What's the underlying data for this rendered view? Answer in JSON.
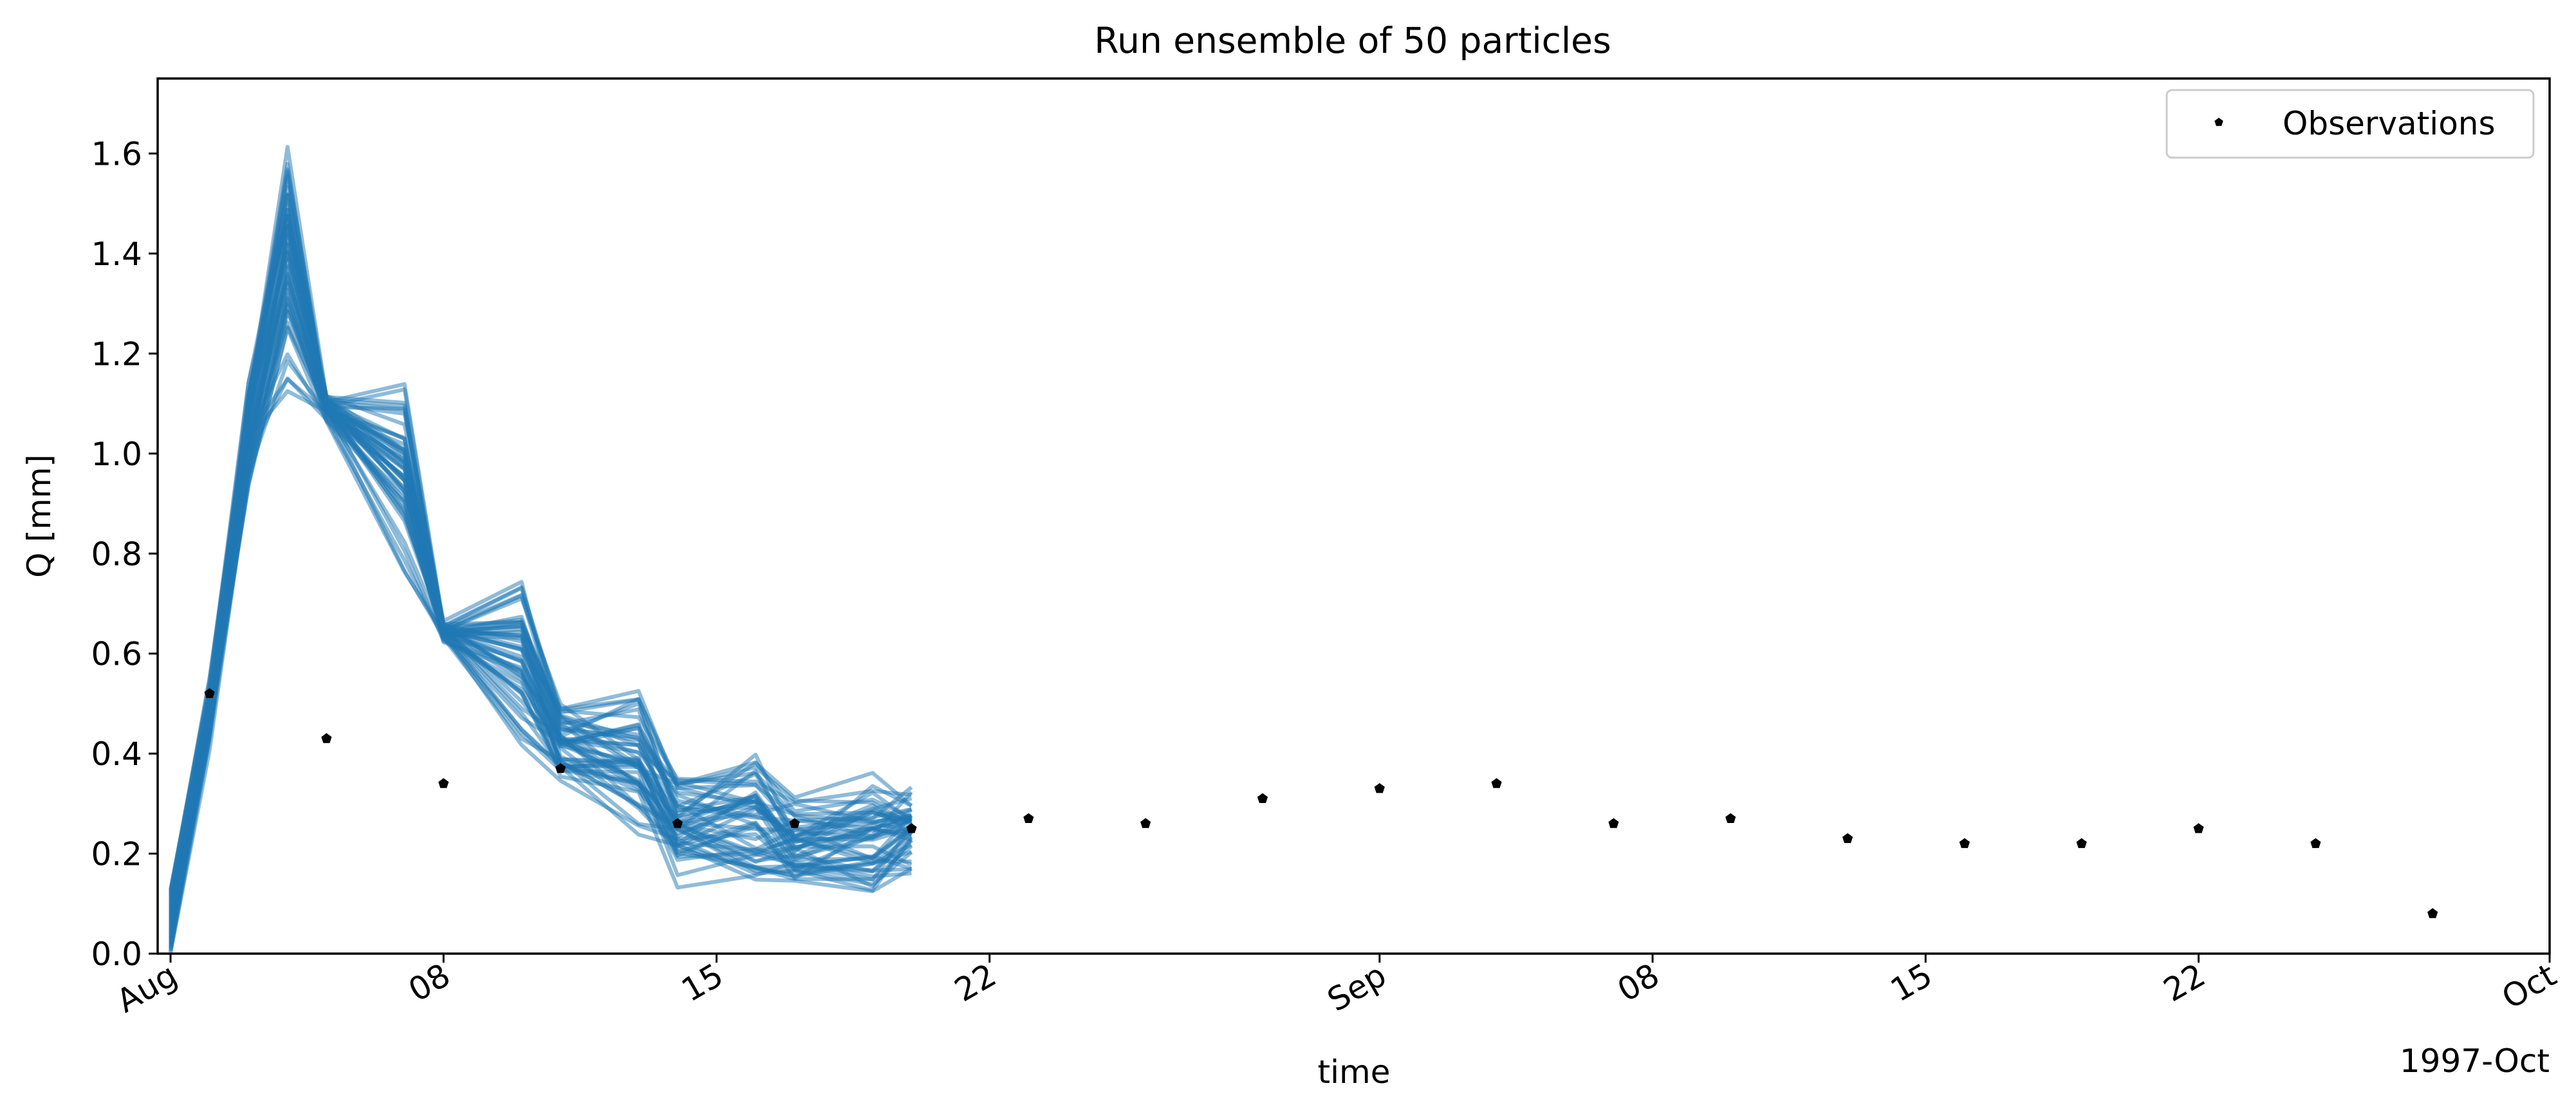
{
  "chart_data": {
    "type": "line",
    "title": "Run ensemble of 50 particles",
    "xlabel": "time",
    "ylabel": "Q [mm]",
    "x_offset_label": "1997-Oct",
    "xlim": [
      "1997-08-01",
      "1997-10-01"
    ],
    "ylim": [
      0,
      1.75
    ],
    "y_ticks": [
      0.0,
      0.2,
      0.4,
      0.6,
      0.8,
      1.0,
      1.2,
      1.4,
      1.6
    ],
    "y_tick_labels": [
      "0.0",
      "0.2",
      "0.4",
      "0.6",
      "0.8",
      "1.0",
      "1.2",
      "1.4",
      "1.6"
    ],
    "x_ticks": [
      "1997-08-01",
      "1997-08-08",
      "1997-08-15",
      "1997-08-22",
      "1997-09-01",
      "1997-09-08",
      "1997-09-15",
      "1997-09-22",
      "1997-10-01"
    ],
    "x_tick_labels": [
      "Aug",
      "08",
      "15",
      "22",
      "Sep",
      "08",
      "15",
      "22",
      "Oct"
    ],
    "legend": {
      "position": "top-right",
      "entries": [
        "Observations"
      ]
    },
    "grid": false,
    "colors": {
      "ensemble": "#1f77b4",
      "observations": "#000000"
    },
    "ensemble": {
      "members": 50,
      "dates": [
        "1997-08-01",
        "1997-08-02",
        "1997-08-03",
        "1997-08-04",
        "1997-08-05",
        "1997-08-07",
        "1997-08-08",
        "1997-08-10",
        "1997-08-11",
        "1997-08-13",
        "1997-08-14",
        "1997-08-16",
        "1997-08-17",
        "1997-08-19",
        "1997-08-20"
      ],
      "low": [
        0.0,
        0.4,
        0.9,
        1.1,
        1.06,
        0.75,
        0.62,
        0.4,
        0.33,
        0.2,
        0.13,
        0.12,
        0.12,
        0.08,
        0.15
      ],
      "high": [
        0.13,
        0.56,
        1.2,
        1.68,
        1.12,
        1.16,
        0.67,
        0.77,
        0.51,
        0.55,
        0.37,
        0.42,
        0.33,
        0.4,
        0.35
      ]
    },
    "observations": {
      "name": "Observations",
      "dates": [
        "1997-08-02",
        "1997-08-05",
        "1997-08-08",
        "1997-08-11",
        "1997-08-14",
        "1997-08-17",
        "1997-08-20",
        "1997-08-23",
        "1997-08-26",
        "1997-08-29",
        "1997-09-01",
        "1997-09-04",
        "1997-09-07",
        "1997-09-10",
        "1997-09-13",
        "1997-09-16",
        "1997-09-19",
        "1997-09-22",
        "1997-09-25",
        "1997-09-28"
      ],
      "values": [
        0.52,
        0.43,
        0.34,
        0.37,
        0.26,
        0.26,
        0.25,
        0.27,
        0.26,
        0.31,
        0.33,
        0.34,
        0.26,
        0.27,
        0.23,
        0.22,
        0.22,
        0.25,
        0.22,
        0.08
      ]
    }
  }
}
